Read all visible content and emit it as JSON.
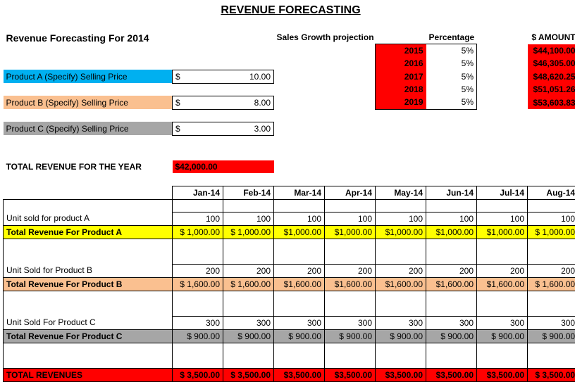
{
  "title": "REVENUE FORECASTING ",
  "subtitle": "Revenue Forecasting For 2014",
  "hdr_sales": "Sales Growth projection",
  "hdr_pct": "Percentage",
  "hdr_amt": "$ AMOUNT",
  "projection": {
    "years": [
      "2015",
      "2016",
      "2017",
      "2018",
      "2019"
    ],
    "pcts": [
      "5%",
      "5%",
      "5%",
      "5%",
      "5%"
    ],
    "amts": [
      "$44,100.00",
      "$46,305.00",
      "$48,620.25",
      "$51,051.26",
      "$53,603.83"
    ]
  },
  "products": {
    "a_label": "Product A (Specify) Selling Price",
    "a_price_sym": "$",
    "a_price": "10.00",
    "b_label": "Product B (Specify) Selling Price",
    "b_price_sym": "$",
    "b_price": "8.00",
    "c_label": "Product C (Specify) Selling Price",
    "c_price_sym": "$",
    "c_price": "3.00"
  },
  "total_year_label": "TOTAL REVENUE FOR THE YEAR",
  "total_year_value": "$42,000.00",
  "months": [
    "Jan-14",
    "Feb-14",
    "Mar-14",
    "Apr-14",
    "May-14",
    "Jun-14",
    "Jul-14",
    "Aug-14"
  ],
  "rows": {
    "units_a_label": "Unit sold for  product A",
    "units_a": [
      "100",
      "100",
      "100",
      "100",
      "100",
      "100",
      "100",
      "100"
    ],
    "rev_a_label": "Total Revenue For Product A",
    "rev_a": [
      "$  1,000.00",
      "$  1,000.00",
      "$1,000.00",
      "$1,000.00",
      "$1,000.00",
      "$1,000.00",
      "$1,000.00",
      "$  1,000.00"
    ],
    "units_b_label": "Unit Sold for Product B",
    "units_b": [
      "200",
      "200",
      "200",
      "200",
      "200",
      "200",
      "200",
      "200"
    ],
    "rev_b_label": "Total Revenue For Product B",
    "rev_b": [
      "$  1,600.00",
      "$  1,600.00",
      "$1,600.00",
      "$1,600.00",
      "$1,600.00",
      "$1,600.00",
      "$1,600.00",
      "$  1,600.00"
    ],
    "units_c_label": "Unit Sold For Product C",
    "units_c": [
      "300",
      "300",
      "300",
      "300",
      "300",
      "300",
      "300",
      "300"
    ],
    "rev_c_label": "Total Revenue For Product C",
    "rev_c": [
      "$    900.00",
      "$    900.00",
      "$   900.00",
      "$   900.00",
      "$   900.00",
      "$   900.00",
      "$   900.00",
      "$    900.00"
    ],
    "total_label": "TOTAL REVENUES",
    "total": [
      "$  3,500.00",
      "$  3,500.00",
      "$3,500.00",
      "$3,500.00",
      "$3,500.00",
      "$3,500.00",
      "$3,500.00",
      "$  3,500.00"
    ]
  },
  "colors": {
    "red": "#ff0000",
    "yellow": "#ffff00",
    "cyan": "#00b0f0",
    "tan": "#fac090",
    "gray": "#a6a6a6",
    "black": "#000000"
  }
}
